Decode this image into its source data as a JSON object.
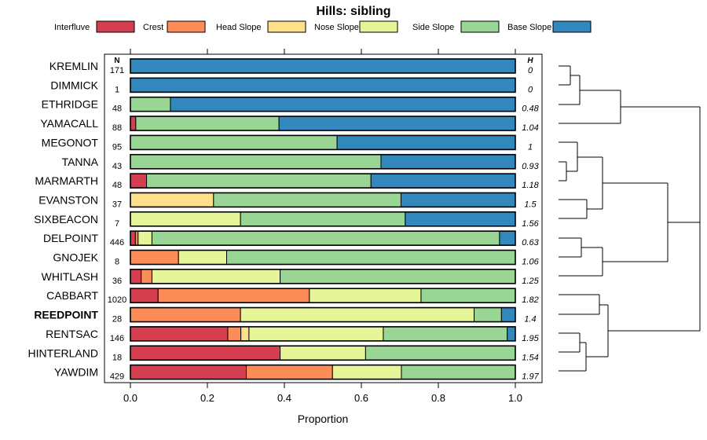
{
  "chart_data": {
    "type": "bar",
    "orientation": "horizontal-stacked-proportion",
    "title": "Hills: sibling",
    "xlabel": "Proportion",
    "xlim": [
      0,
      1
    ],
    "xticks": [
      "0.0",
      "0.2",
      "0.4",
      "0.6",
      "0.8",
      "1.0"
    ],
    "tick_values": [
      0,
      0.2,
      0.4,
      0.6,
      0.8,
      1.0
    ],
    "n_header": "N",
    "h_header": "H",
    "series": [
      {
        "name": "Interfluve",
        "color": "#D53E4F"
      },
      {
        "name": "Crest",
        "color": "#FC8D59"
      },
      {
        "name": "Head Slope",
        "color": "#FEE08B"
      },
      {
        "name": "Nose Slope",
        "color": "#E6F598"
      },
      {
        "name": "Side Slope",
        "color": "#99D594"
      },
      {
        "name": "Base Slope",
        "color": "#3288BD"
      }
    ],
    "rows": [
      {
        "label": "KREMLIN",
        "n": "171",
        "h": "0",
        "bold": false,
        "values": [
          0,
          0,
          0,
          0,
          0,
          1.0
        ]
      },
      {
        "label": "DIMMICK",
        "n": "1",
        "h": "0",
        "bold": false,
        "values": [
          0,
          0,
          0,
          0,
          0,
          1.0
        ]
      },
      {
        "label": "ETHRIDGE",
        "n": "48",
        "h": "0.48",
        "bold": false,
        "values": [
          0,
          0,
          0,
          0,
          0.104,
          0.896
        ]
      },
      {
        "label": "YAMACALL",
        "n": "88",
        "h": "1.04",
        "bold": false,
        "values": [
          0.014,
          0,
          0,
          0,
          0.372,
          0.614
        ]
      },
      {
        "label": "MEGONOT",
        "n": "95",
        "h": "1",
        "bold": false,
        "values": [
          0,
          0,
          0,
          0,
          0.537,
          0.463
        ]
      },
      {
        "label": "TANNA",
        "n": "43",
        "h": "0.93",
        "bold": false,
        "values": [
          0,
          0,
          0,
          0,
          0.651,
          0.349
        ]
      },
      {
        "label": "MARMARTH",
        "n": "48",
        "h": "1.18",
        "bold": false,
        "values": [
          0.042,
          0,
          0,
          0,
          0.583,
          0.375
        ]
      },
      {
        "label": "EVANSTON",
        "n": "37",
        "h": "1.5",
        "bold": false,
        "values": [
          0,
          0,
          0.216,
          0,
          0.487,
          0.297
        ]
      },
      {
        "label": "SIXBEACON",
        "n": "7",
        "h": "1.56",
        "bold": false,
        "values": [
          0,
          0,
          0,
          0.286,
          0.428,
          0.286
        ]
      },
      {
        "label": "DELPOINT",
        "n": "446",
        "h": "0.63",
        "bold": false,
        "values": [
          0.013,
          0.007,
          0,
          0.036,
          0.903,
          0.041
        ]
      },
      {
        "label": "GNOJEK",
        "n": "8",
        "h": "1.06",
        "bold": false,
        "values": [
          0,
          0.125,
          0,
          0.125,
          0.75,
          0
        ]
      },
      {
        "label": "WHITLASH",
        "n": "36",
        "h": "1.25",
        "bold": false,
        "values": [
          0.028,
          0.028,
          0,
          0.333,
          0.611,
          0
        ]
      },
      {
        "label": "CABBART",
        "n": "1020",
        "h": "1.82",
        "bold": false,
        "values": [
          0.072,
          0.393,
          0,
          0.29,
          0.245,
          0
        ]
      },
      {
        "label": "REEDPOINT",
        "n": "28",
        "h": "1.4",
        "bold": true,
        "values": [
          0,
          0.286,
          0,
          0.607,
          0.071,
          0.036
        ]
      },
      {
        "label": "RENTSAC",
        "n": "146",
        "h": "1.95",
        "bold": false,
        "values": [
          0.253,
          0.034,
          0.021,
          0.349,
          0.322,
          0.021
        ]
      },
      {
        "label": "HINTERLAND",
        "n": "18",
        "h": "1.54",
        "bold": false,
        "values": [
          0.389,
          0,
          0,
          0.222,
          0.389,
          0
        ]
      },
      {
        "label": "YAWDIM",
        "n": "429",
        "h": "1.97",
        "bold": false,
        "values": [
          0.301,
          0.224,
          0,
          0.179,
          0.296,
          0
        ]
      }
    ]
  }
}
